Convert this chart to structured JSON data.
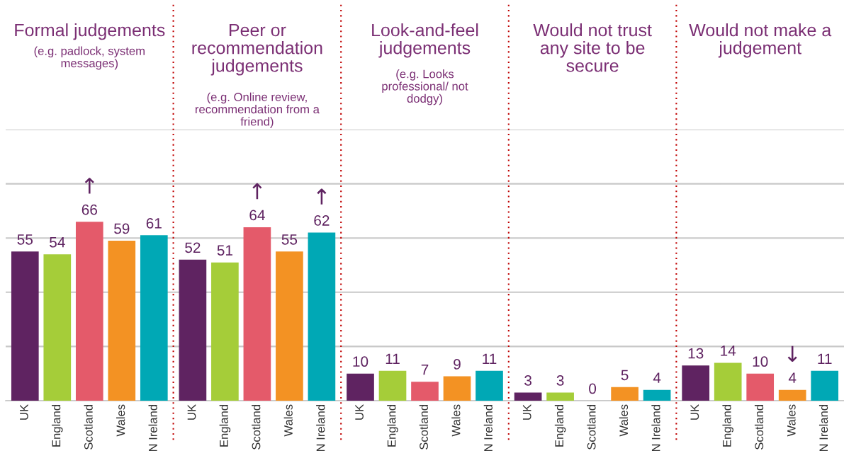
{
  "chart_data": [
    {
      "type": "bar",
      "title": "Formal judgements",
      "subtitle": "(e.g. padlock, system messages)",
      "categories": [
        "UK",
        "England",
        "Scotland",
        "Wales",
        "N Ireland"
      ],
      "values": [
        55,
        54,
        66,
        59,
        61
      ],
      "colors": [
        "#5f2361",
        "#a5cd39",
        "#e45a6a",
        "#f39223",
        "#00a8b5"
      ],
      "ylim": [
        0,
        100
      ],
      "yticks": [
        {
          "value": 0,
          "label": null
        },
        {
          "value": 20,
          "label": null
        },
        {
          "value": 40,
          "label": null
        },
        {
          "value": 60,
          "label": null
        },
        {
          "value": 80,
          "label": null
        },
        {
          "value": 100,
          "label": null
        }
      ],
      "grid": "y",
      "tick_labels": "x",
      "data_labels": true,
      "annotations": [
        {
          "text": "↑",
          "x": "Scotland",
          "y": 66
        }
      ]
    },
    {
      "type": "bar",
      "title": "Peer or recommendation judgements",
      "subtitle": "(e.g. Online review, recommendation from a friend)",
      "categories": [
        "UK",
        "England",
        "Scotland",
        "Wales",
        "N Ireland"
      ],
      "values": [
        52,
        51,
        64,
        55,
        62
      ],
      "colors": [
        "#5f2361",
        "#a5cd39",
        "#e45a6a",
        "#f39223",
        "#00a8b5"
      ],
      "ylim": [
        0,
        100
      ],
      "yticks": [
        {
          "value": 0,
          "label": null
        },
        {
          "value": 20,
          "label": null
        },
        {
          "value": 40,
          "label": null
        },
        {
          "value": 60,
          "label": null
        },
        {
          "value": 80,
          "label": null
        },
        {
          "value": 100,
          "label": null
        }
      ],
      "grid": "y",
      "tick_labels": "x",
      "data_labels": true,
      "annotations": [
        {
          "text": "↑",
          "x": "Scotland",
          "y": 64
        },
        {
          "text": "↑",
          "x": "N Ireland",
          "y": 62
        }
      ]
    },
    {
      "type": "bar",
      "title": "Look-and-feel judgements",
      "subtitle": "(e.g. Looks professional/ not dodgy)",
      "categories": [
        "UK",
        "England",
        "Scotland",
        "Wales",
        "N Ireland"
      ],
      "values": [
        10,
        11,
        7,
        9,
        11
      ],
      "colors": [
        "#5f2361",
        "#a5cd39",
        "#e45a6a",
        "#f39223",
        "#00a8b5"
      ],
      "ylim": [
        0,
        100
      ],
      "yticks": [
        {
          "value": 0,
          "label": null
        },
        {
          "value": 20,
          "label": null
        },
        {
          "value": 40,
          "label": null
        },
        {
          "value": 60,
          "label": null
        },
        {
          "value": 80,
          "label": null
        },
        {
          "value": 100,
          "label": null
        }
      ],
      "grid": "y",
      "tick_labels": "x",
      "data_labels": true
    },
    {
      "type": "bar",
      "title": "Would not trust any site to be secure",
      "categories": [
        "UK",
        "England",
        "Scotland",
        "Wales",
        "N Ireland"
      ],
      "values": [
        3,
        3,
        0,
        5,
        4
      ],
      "colors": [
        "#5f2361",
        "#a5cd39",
        "#e45a6a",
        "#f39223",
        "#00a8b5"
      ],
      "ylim": [
        0,
        100
      ],
      "yticks": [
        {
          "value": 0,
          "label": null
        },
        {
          "value": 20,
          "label": null
        },
        {
          "value": 40,
          "label": null
        },
        {
          "value": 60,
          "label": null
        },
        {
          "value": 80,
          "label": null
        },
        {
          "value": 100,
          "label": null
        }
      ],
      "grid": "y",
      "tick_labels": "x",
      "data_labels": true
    },
    {
      "type": "bar",
      "title": "Would not make a judgement",
      "categories": [
        "UK",
        "England",
        "Scotland",
        "Wales",
        "N Ireland"
      ],
      "values": [
        13,
        14,
        10,
        4,
        11
      ],
      "colors": [
        "#5f2361",
        "#a5cd39",
        "#e45a6a",
        "#f39223",
        "#00a8b5"
      ],
      "ylim": [
        0,
        100
      ],
      "yticks": [
        {
          "value": 0,
          "label": null
        },
        {
          "value": 20,
          "label": null
        },
        {
          "value": 40,
          "label": null
        },
        {
          "value": 60,
          "label": null
        },
        {
          "value": 80,
          "label": null
        },
        {
          "value": 100,
          "label": null
        }
      ],
      "grid": "y",
      "tick_labels": "x",
      "data_labels": true,
      "annotations": [
        {
          "text": "↓",
          "x": "Wales",
          "y": 4
        }
      ]
    }
  ]
}
